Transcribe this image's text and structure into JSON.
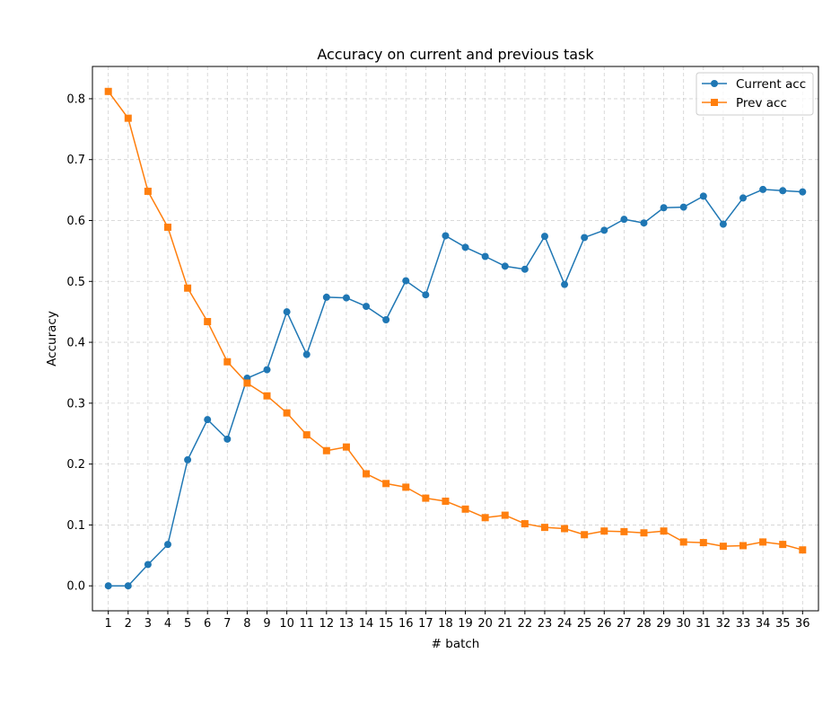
{
  "chart_data": {
    "type": "line",
    "title": "Accuracy on current and previous task",
    "xlabel": "# batch",
    "ylabel": "Accuracy",
    "x": [
      1,
      2,
      3,
      4,
      5,
      6,
      7,
      8,
      9,
      10,
      11,
      12,
      13,
      14,
      15,
      16,
      17,
      18,
      19,
      20,
      21,
      22,
      23,
      24,
      25,
      26,
      27,
      28,
      29,
      30,
      31,
      32,
      33,
      34,
      35,
      36
    ],
    "xticks": [
      "1",
      "2",
      "3",
      "4",
      "5",
      "6",
      "7",
      "8",
      "9",
      "10",
      "11",
      "12",
      "13",
      "14",
      "15",
      "16",
      "17",
      "18",
      "19",
      "20",
      "21",
      "22",
      "23",
      "24",
      "25",
      "26",
      "27",
      "28",
      "29",
      "30",
      "31",
      "32",
      "33",
      "34",
      "35",
      "36"
    ],
    "yticks": [
      "0.0",
      "0.1",
      "0.2",
      "0.3",
      "0.4",
      "0.5",
      "0.6",
      "0.7",
      "0.8"
    ],
    "ylim": [
      -0.041,
      0.853
    ],
    "xlim": [
      0.2,
      36.8
    ],
    "grid": true,
    "legend_position": "top-right",
    "series": [
      {
        "name": "Current acc",
        "color": "#1f77b4",
        "marker": "circle",
        "values": [
          0.0,
          0.0,
          0.035,
          0.068,
          0.207,
          0.273,
          0.241,
          0.341,
          0.355,
          0.45,
          0.38,
          0.474,
          0.473,
          0.459,
          0.437,
          0.501,
          0.478,
          0.575,
          0.556,
          0.541,
          0.525,
          0.52,
          0.574,
          0.495,
          0.572,
          0.584,
          0.602,
          0.596,
          0.621,
          0.622,
          0.64,
          0.594,
          0.637,
          0.651,
          0.649,
          0.647
        ]
      },
      {
        "name": "Prev acc",
        "color": "#ff7f0e",
        "marker": "square",
        "values": [
          0.812,
          0.768,
          0.648,
          0.589,
          0.489,
          0.434,
          0.368,
          0.333,
          0.312,
          0.284,
          0.248,
          0.222,
          0.228,
          0.184,
          0.168,
          0.162,
          0.144,
          0.139,
          0.126,
          0.112,
          0.116,
          0.102,
          0.096,
          0.094,
          0.084,
          0.09,
          0.089,
          0.087,
          0.09,
          0.072,
          0.071,
          0.065,
          0.066,
          0.072,
          0.068,
          0.059
        ]
      }
    ]
  }
}
